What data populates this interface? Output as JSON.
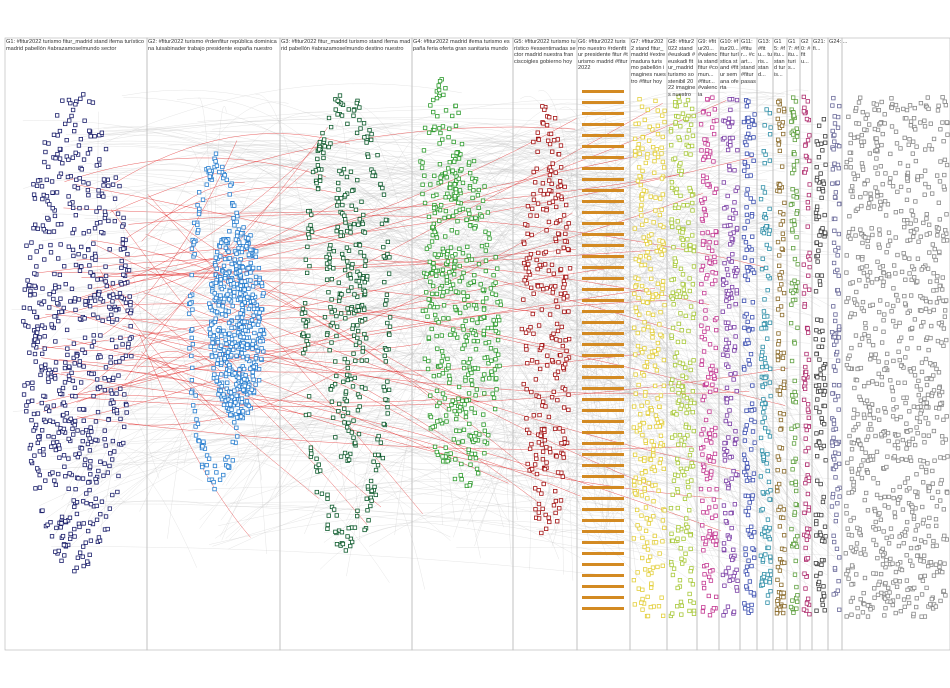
{
  "groups": [
    {
      "label": "G1: #fitur2022 turismo fitur_madrid stand ifema turístico madrid pabellón #abrazamoselmundo sector"
    },
    {
      "label": "G2: #fitur2022 turismo #rdenfitur república dominicana luisabinader trabajo presidente españa nuestro"
    },
    {
      "label": "G3: #fitur2022 fitur_madrid turismo stand ifema madrid pabellón #abrazamoselmundo destino nuestro"
    },
    {
      "label": "G4: #fitur2022 madrid ifema turismo españa feria oferta gran sanitaria mundo"
    },
    {
      "label": "G5: #fitur2022 turismo turístico #essentimadas sector madrid nuestra franciscoigles gobierno hoy"
    },
    {
      "label": "G6: #fitur2022 turismo nuestro #rdenfitur presidente fitur #turismo madrid #fitur 2022"
    },
    {
      "label": "G7: #fitur2022 stand fitur_madrid #extremadura turismo pabellón imagines nuestro #fitur hoy"
    },
    {
      "label": "G8: #fitur2022 stand #euskadi #euskadi fitur_madrid turismo sostenibil 2022 imagines nuestro"
    },
    {
      "label": "G9: #fitur20... #valencia stand fitur #comun... #fitur... #valencia"
    },
    {
      "label": "G10: #fitur20... fitur turística stand #fitur semana oferta"
    },
    {
      "label": "G11: #fitur... #cart... stand #fitur pasas"
    },
    {
      "label": "G13: #fitu... turis... stand..."
    },
    {
      "label": "G15: #fitu... stand turis..."
    },
    {
      "label": "G17: #fitu... turis..."
    },
    {
      "label": "G20: #fitu..."
    },
    {
      "label": "G21: fi..."
    },
    {
      "label": "G24: ..."
    }
  ]
}
